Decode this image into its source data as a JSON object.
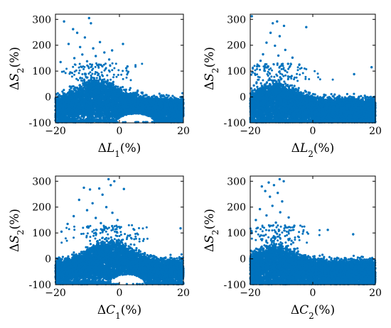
{
  "chart_data": [
    {
      "type": "scatter",
      "xlabel": {
        "delta": "Δ",
        "var": "L",
        "sub": "1",
        "unit": "(%)"
      },
      "ylabel": {
        "delta": "Δ",
        "var": "S",
        "sub": "2",
        "unit": "(%)"
      },
      "xlim": [
        -20,
        20
      ],
      "ylim": [
        -100,
        320
      ],
      "xticks": [
        -20,
        0,
        20
      ],
      "yticks": [
        -100,
        0,
        100,
        200,
        300
      ],
      "marker_color": "#0072BD",
      "density": {
        "peak_x": -7,
        "core_top": 55,
        "core_bottom": -75,
        "hole": {
          "x": [
            -1,
            11
          ],
          "y": -100,
          "height": 35
        }
      },
      "outliers": [
        [
          -17.3,
          292
        ],
        [
          -9.5,
          305
        ],
        [
          -8.9,
          285
        ],
        [
          -14.5,
          262
        ],
        [
          -13.2,
          248
        ],
        [
          -10.8,
          230
        ],
        [
          -6.1,
          212
        ],
        [
          -15.9,
          205
        ],
        [
          -12.3,
          193
        ],
        [
          -8.2,
          188
        ],
        [
          -4.7,
          172
        ],
        [
          -11.6,
          164
        ],
        [
          -7.4,
          158
        ],
        [
          -3.2,
          145
        ],
        [
          -14.1,
          150
        ],
        [
          1.1,
          205
        ],
        [
          -2.3,
          180
        ],
        [
          2.5,
          118
        ],
        [
          -18.4,
          135
        ],
        [
          -10.1,
          138
        ]
      ]
    },
    {
      "type": "scatter",
      "xlabel": {
        "delta": "Δ",
        "var": "L",
        "sub": "2",
        "unit": "(%)"
      },
      "ylabel": {
        "delta": "Δ",
        "var": "S",
        "sub": "2",
        "unit": "(%)"
      },
      "xlim": [
        -20,
        20
      ],
      "ylim": [
        -100,
        320
      ],
      "xticks": [
        -20,
        0,
        20
      ],
      "yticks": [
        -100,
        0,
        100,
        200,
        300
      ],
      "marker_color": "#0072BD",
      "density": {
        "peak_x": -12,
        "core_top": 40,
        "core_bottom": -85,
        "hole": null
      },
      "outliers": [
        [
          -19.5,
          312
        ],
        [
          -12.8,
          285
        ],
        [
          -11.4,
          292
        ],
        [
          -9.2,
          275
        ],
        [
          -2.1,
          270
        ],
        [
          -13.5,
          248
        ],
        [
          -10.6,
          235
        ],
        [
          -14.8,
          210
        ],
        [
          -12.1,
          198
        ],
        [
          -8.8,
          182
        ],
        [
          -15.9,
          165
        ],
        [
          -11.0,
          160
        ],
        [
          -6.5,
          152
        ],
        [
          -16.7,
          140
        ],
        [
          -4.3,
          125
        ],
        [
          -17.8,
          118
        ],
        [
          -7.9,
          128
        ],
        [
          18.8,
          115
        ],
        [
          13.2,
          88
        ],
        [
          -19.2,
          95
        ]
      ]
    },
    {
      "type": "scatter",
      "xlabel": {
        "delta": "Δ",
        "var": "C",
        "sub": "1",
        "unit": "(%)"
      },
      "ylabel": {
        "delta": "Δ",
        "var": "S",
        "sub": "2",
        "unit": "(%)"
      },
      "xlim": [
        -20,
        20
      ],
      "ylim": [
        -100,
        320
      ],
      "xticks": [
        -20,
        0,
        20
      ],
      "yticks": [
        -100,
        0,
        100,
        200,
        300
      ],
      "marker_color": "#0072BD",
      "density": {
        "peak_x": -3,
        "core_top": 58,
        "core_bottom": -75,
        "hole": {
          "x": [
            -3,
            8
          ],
          "y": -100,
          "height": 40
        }
      },
      "outliers": [
        [
          -3.4,
          308
        ],
        [
          -1.6,
          300
        ],
        [
          -2.7,
          285
        ],
        [
          -11.1,
          275
        ],
        [
          -9.2,
          268
        ],
        [
          -6.3,
          272
        ],
        [
          1.4,
          270
        ],
        [
          -5.3,
          248
        ],
        [
          -12.6,
          228
        ],
        [
          -8.4,
          215
        ],
        [
          -4.1,
          200
        ],
        [
          -10.1,
          188
        ],
        [
          -2.2,
          178
        ],
        [
          -14.3,
          165
        ],
        [
          -7.4,
          158
        ],
        [
          -0.6,
          150
        ],
        [
          -16.2,
          135
        ],
        [
          -5.8,
          138
        ],
        [
          19.1,
          118
        ],
        [
          -18.1,
          105
        ]
      ]
    },
    {
      "type": "scatter",
      "xlabel": {
        "delta": "Δ",
        "var": "C",
        "sub": "2",
        "unit": "(%)"
      },
      "ylabel": {
        "delta": "Δ",
        "var": "S",
        "sub": "2",
        "unit": "(%)"
      },
      "xlim": [
        -20,
        20
      ],
      "ylim": [
        -100,
        320
      ],
      "xticks": [
        -20,
        0,
        20
      ],
      "yticks": [
        -100,
        0,
        100,
        200,
        300
      ],
      "marker_color": "#0072BD",
      "density": {
        "peak_x": -12,
        "core_top": 40,
        "core_bottom": -85,
        "hole": null
      },
      "outliers": [
        [
          -10.6,
          308
        ],
        [
          -9.3,
          300
        ],
        [
          -14.1,
          295
        ],
        [
          -12.4,
          285
        ],
        [
          -16.3,
          280
        ],
        [
          -15.2,
          262
        ],
        [
          -11.2,
          255
        ],
        [
          -13.7,
          240
        ],
        [
          -9.8,
          222
        ],
        [
          -12.9,
          205
        ],
        [
          -16.9,
          192
        ],
        [
          -10.4,
          180
        ],
        [
          -14.8,
          168
        ],
        [
          -7.7,
          160
        ],
        [
          -18.2,
          150
        ],
        [
          -11.8,
          140
        ],
        [
          -5.9,
          128
        ],
        [
          -17.6,
          120
        ],
        [
          4.8,
          112
        ],
        [
          12.9,
          95
        ]
      ]
    }
  ]
}
